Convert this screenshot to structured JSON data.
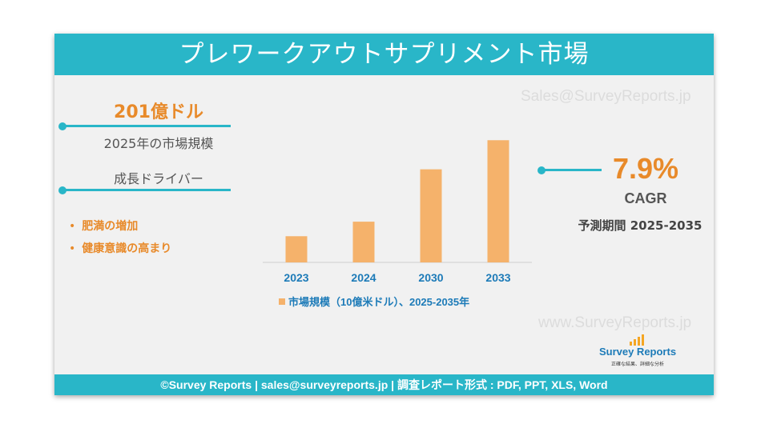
{
  "header": {
    "title": "プレワークアウトサプリメント市場"
  },
  "left_panel": {
    "market_size_value": "201億ドル",
    "market_size_label": "2025年の市場規模",
    "drivers_heading": "成長ドライバー",
    "drivers": [
      "肥満の増加",
      "健康意識の高まり"
    ]
  },
  "right_panel": {
    "cagr_value": "7.9%",
    "cagr_label": "CAGR",
    "forecast_period": "予測期間 2025-2035"
  },
  "watermarks": {
    "top": "Sales@SurveyReports.jp",
    "bottom": "www.SurveyReports.jp"
  },
  "logo": {
    "name": "Survey Reports",
    "tagline": "正確な結果、詳細な分析"
  },
  "footer": {
    "text": "©Survey Reports | sales@surveyreports.jp |  調査レポート形式 : PDF, PPT, XLS, Word"
  },
  "colors": {
    "accent": "#29b6c8",
    "bar": "#f5b26b",
    "highlight": "#e88a2a",
    "year_label": "#1d7bb8"
  },
  "chart_data": {
    "type": "bar",
    "categories": [
      "2023",
      "2024",
      "2030",
      "2033"
    ],
    "series": [
      {
        "name": "市場規模（10億米ドル）、2025-2035年",
        "values": [
          4.5,
          7,
          16,
          21
        ]
      }
    ],
    "ylim": [
      0,
      22
    ],
    "legend": "市場規模（10億米ドル）、2025-2035年",
    "legend_position": "bottom",
    "grid": false
  }
}
